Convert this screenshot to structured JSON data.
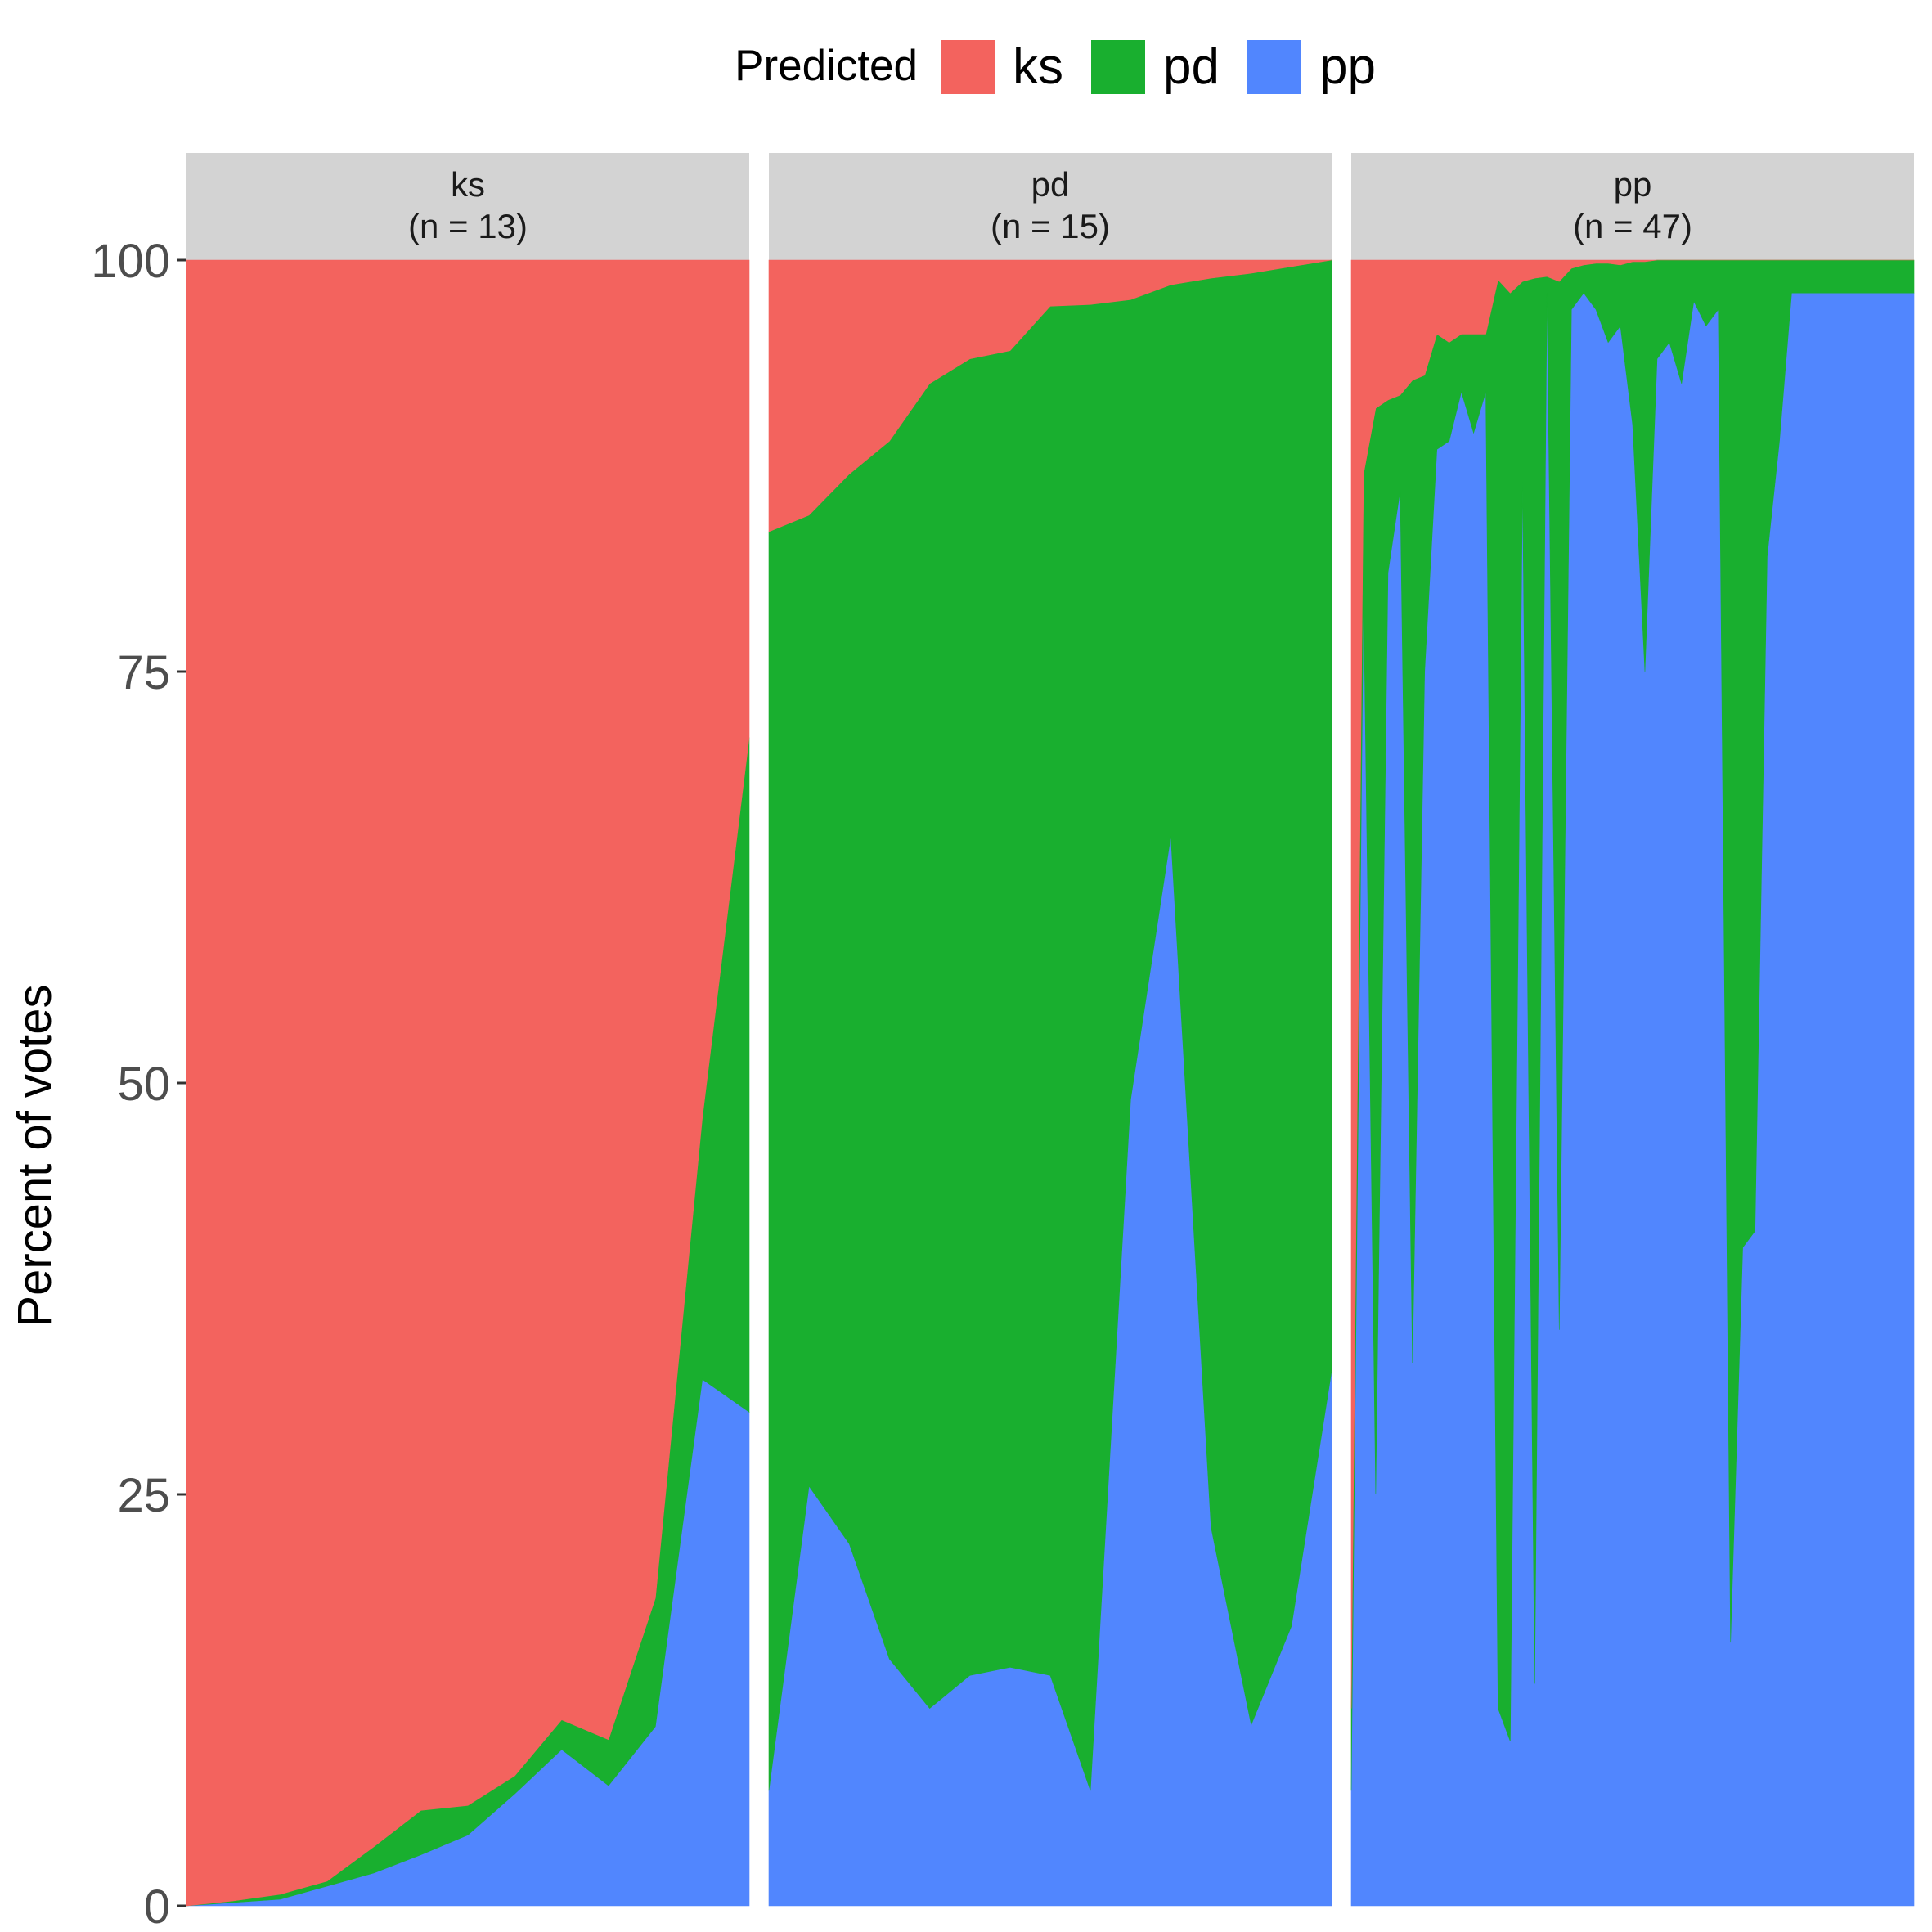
{
  "chart_data": {
    "type": "area",
    "stacked": true,
    "ylabel": "Percent of votes",
    "ylim": [
      0,
      100
    ],
    "yticks": [
      0,
      25,
      50,
      75,
      100
    ],
    "grid": false,
    "legend": {
      "title": "Predicted",
      "position": "top",
      "entries": [
        {
          "name": "ks",
          "color": "#F3635E"
        },
        {
          "name": "pd",
          "color": "#19AF2F"
        },
        {
          "name": "pp",
          "color": "#5186FE"
        }
      ]
    },
    "panels": [
      {
        "strip_title": "ks",
        "strip_n": "(n = 13)",
        "pp": [
          0,
          0.2,
          0.4,
          1.2,
          2.0,
          3.1,
          4.3,
          6.8,
          9.5,
          7.3,
          10.9,
          32,
          30
        ],
        "pd": [
          0,
          0.1,
          0.3,
          0.3,
          1.6,
          2.7,
          1.8,
          1.1,
          1.8,
          2.8,
          7.8,
          15.9,
          41
        ],
        "ks": [
          100,
          99.7,
          99.3,
          98.5,
          96.4,
          94.2,
          93.9,
          92.1,
          88.7,
          89.9,
          81.3,
          52.1,
          29
        ]
      },
      {
        "strip_title": "pd",
        "strip_n": "(n = 15)",
        "pp": [
          7,
          25.5,
          22,
          15,
          12,
          14,
          14.5,
          14,
          7,
          49,
          65,
          23,
          11,
          17,
          32.5
        ],
        "pd": [
          76.5,
          59,
          65,
          74,
          80.5,
          80,
          80,
          83.2,
          90.3,
          48.6,
          33.5,
          75.9,
          88.2,
          82.6,
          67.5
        ],
        "ks": [
          16.5,
          15.5,
          13,
          11,
          7.5,
          6,
          5.5,
          2.8,
          2.7,
          2.4,
          1.5,
          1.1,
          0.8,
          0.4,
          0
        ]
      },
      {
        "strip_title": "pp",
        "strip_n": "(n = 47)",
        "pp": [
          7,
          80,
          25,
          81,
          86,
          33,
          75,
          88.5,
          89,
          92,
          89.5,
          92,
          12,
          10,
          86.5,
          13.5,
          98,
          35,
          97,
          98,
          97,
          95,
          96,
          90,
          75,
          94,
          95,
          92.5,
          97.5,
          96,
          97,
          16,
          40,
          41,
          82,
          89,
          98,
          98,
          98,
          98,
          98,
          98,
          98,
          98,
          98,
          98,
          98
        ],
        "pd": [
          5,
          7,
          66,
          10.5,
          5.8,
          59.7,
          18,
          7,
          6,
          3.5,
          6,
          3.5,
          86.8,
          88,
          12.2,
          85.4,
          1,
          63.7,
          2.5,
          1.7,
          2.8,
          4.8,
          3.7,
          9.9,
          24.9,
          6,
          5,
          7.5,
          2.5,
          4,
          3,
          84,
          60,
          59,
          18,
          11,
          2,
          2,
          2,
          2,
          2,
          2,
          2,
          2,
          2,
          2,
          2
        ],
        "ks": [
          88,
          13,
          9,
          8.5,
          8.2,
          7.3,
          7,
          4.5,
          5,
          4.5,
          4.5,
          4.5,
          1.2,
          2,
          1.3,
          1.1,
          1,
          1.3,
          0.5,
          0.3,
          0.2,
          0.2,
          0.3,
          0.1,
          0.1,
          0,
          0,
          0,
          0,
          0,
          0,
          0,
          0,
          0,
          0,
          0,
          0,
          0,
          0,
          0,
          0,
          0,
          0,
          0,
          0,
          0,
          0
        ]
      }
    ]
  }
}
